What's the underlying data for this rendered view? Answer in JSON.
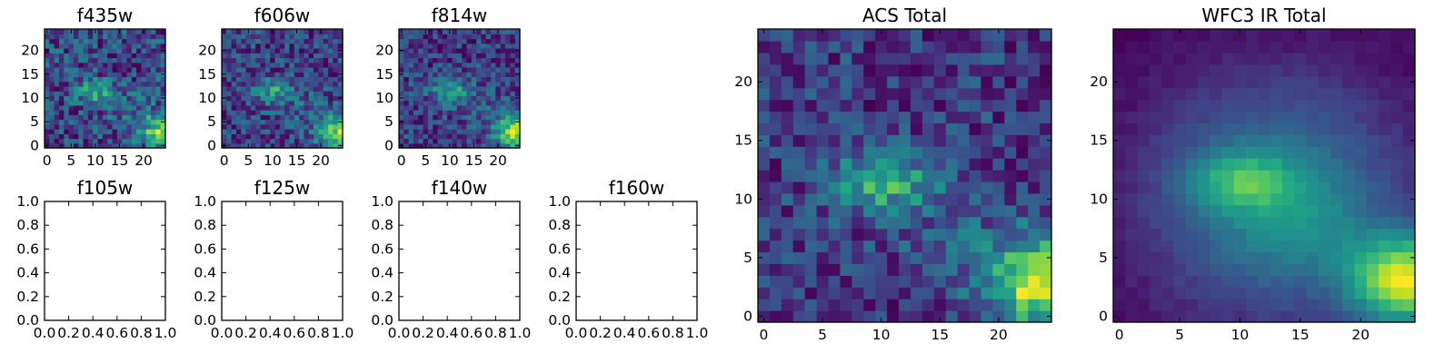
{
  "chart_data": [
    {
      "type": "heatmap",
      "title": "f435w",
      "size": 25,
      "seed": 11,
      "noise": 0.55,
      "bg": 0.62,
      "xticks": [
        "0",
        "5",
        "10",
        "15",
        "20"
      ],
      "yticks": [
        "0",
        "5",
        "10",
        "15",
        "20"
      ]
    },
    {
      "type": "heatmap",
      "title": "f606w",
      "size": 25,
      "seed": 23,
      "noise": 0.48,
      "bg": 0.5,
      "xticks": [
        "0",
        "5",
        "10",
        "15",
        "20"
      ],
      "yticks": [
        "0",
        "5",
        "10",
        "15",
        "20"
      ]
    },
    {
      "type": "heatmap",
      "title": "f814w",
      "size": 25,
      "seed": 37,
      "noise": 0.42,
      "bg": 0.34,
      "xticks": [
        "0",
        "5",
        "10",
        "15",
        "20"
      ],
      "yticks": [
        "0",
        "5",
        "10",
        "15",
        "20"
      ]
    },
    {
      "type": "empty",
      "title": "f105w",
      "xlim": [
        0,
        1
      ],
      "ylim": [
        0,
        1
      ],
      "xticks": [
        "0.0",
        "0.2",
        "0.4",
        "0.6",
        "0.8",
        "1.0"
      ],
      "yticks": [
        "0.0",
        "0.2",
        "0.4",
        "0.6",
        "0.8",
        "1.0"
      ]
    },
    {
      "type": "empty",
      "title": "f125w",
      "xlim": [
        0,
        1
      ],
      "ylim": [
        0,
        1
      ],
      "xticks": [
        "0.0",
        "0.2",
        "0.4",
        "0.6",
        "0.8",
        "1.0"
      ],
      "yticks": [
        "0.0",
        "0.2",
        "0.4",
        "0.6",
        "0.8",
        "1.0"
      ]
    },
    {
      "type": "empty",
      "title": "f140w",
      "xlim": [
        0,
        1
      ],
      "ylim": [
        0,
        1
      ],
      "xticks": [
        "0.0",
        "0.2",
        "0.4",
        "0.6",
        "0.8",
        "1.0"
      ],
      "yticks": [
        "0.0",
        "0.2",
        "0.4",
        "0.6",
        "0.8",
        "1.0"
      ]
    },
    {
      "type": "empty",
      "title": "f160w",
      "xlim": [
        0,
        1
      ],
      "ylim": [
        0,
        1
      ],
      "xticks": [
        "0.0",
        "0.2",
        "0.4",
        "0.6",
        "0.8",
        "1.0"
      ],
      "yticks": [
        "0.0",
        "0.2",
        "0.4",
        "0.6",
        "0.8",
        "1.0"
      ]
    },
    {
      "type": "heatmap",
      "title": "ACS Total",
      "size": 25,
      "seed": 53,
      "noise": 0.32,
      "bg": 0.38,
      "xticks": [
        "0",
        "5",
        "10",
        "15",
        "20"
      ],
      "yticks": [
        "0",
        "5",
        "10",
        "15",
        "20"
      ]
    },
    {
      "type": "heatmap",
      "title": "WFC3 IR Total",
      "size": 25,
      "seed": 71,
      "noise": 0.05,
      "bg": 0.1,
      "smooth": true,
      "xticks": [
        "0",
        "5",
        "10",
        "15",
        "20"
      ],
      "yticks": [
        "0",
        "5",
        "10",
        "15",
        "20"
      ]
    }
  ],
  "colormap": "viridis"
}
